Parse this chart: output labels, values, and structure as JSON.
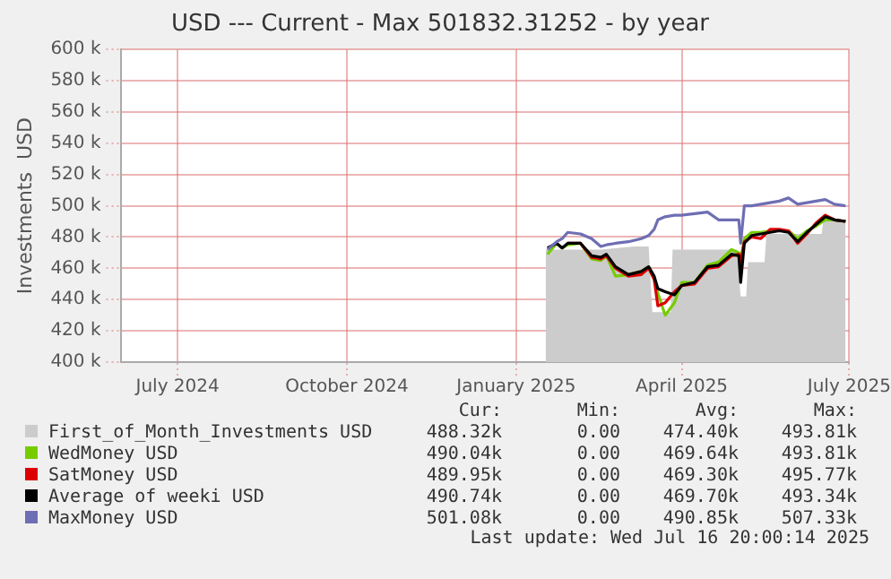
{
  "chart_data": {
    "type": "line",
    "title": "USD --- Current - Max 501832.31252 - by year",
    "ylabel": "Investments  USD",
    "xlim": [
      "2024-05-31",
      "2025-07-01"
    ],
    "xticks": [
      {
        "value": "2024-07-01",
        "label": "July 2024"
      },
      {
        "value": "2024-10-01",
        "label": "October 2024"
      },
      {
        "value": "2025-01-01",
        "label": "January 2025"
      },
      {
        "value": "2025-04-01",
        "label": "April 2025"
      },
      {
        "value": "2025-07-01",
        "label": "July 2025"
      }
    ],
    "ylim": [
      400000,
      600000
    ],
    "yticks": [
      {
        "value": 400000,
        "label": "400 k"
      },
      {
        "value": 420000,
        "label": "420 k"
      },
      {
        "value": 440000,
        "label": "440 k"
      },
      {
        "value": 460000,
        "label": "460 k"
      },
      {
        "value": 480000,
        "label": "480 k"
      },
      {
        "value": 500000,
        "label": "500 k"
      },
      {
        "value": 520000,
        "label": "520 k"
      },
      {
        "value": 540000,
        "label": "540 k"
      },
      {
        "value": 560000,
        "label": "560 k"
      },
      {
        "value": 580000,
        "label": "580 k"
      },
      {
        "value": 600000,
        "label": "600 k"
      }
    ],
    "x": [
      "2025-01-18",
      "2025-01-23",
      "2025-01-26",
      "2025-01-29",
      "2025-02-05",
      "2025-02-11",
      "2025-02-16",
      "2025-02-19",
      "2025-02-24",
      "2025-03-03",
      "2025-03-10",
      "2025-03-14",
      "2025-03-17",
      "2025-03-19",
      "2025-03-23",
      "2025-03-28",
      "2025-04-01",
      "2025-04-08",
      "2025-04-15",
      "2025-04-21",
      "2025-04-28",
      "2025-05-02",
      "2025-05-03",
      "2025-05-05",
      "2025-05-09",
      "2025-05-14",
      "2025-05-19",
      "2025-05-24",
      "2025-05-29",
      "2025-06-03",
      "2025-06-08",
      "2025-06-13",
      "2025-06-18",
      "2025-06-23",
      "2025-06-29"
    ],
    "series": [
      {
        "name": "First_of_Month_Investments USD",
        "type": "area",
        "color": "#cccccc",
        "x": [
          "2025-01-17",
          "2025-02-11",
          "2025-02-16",
          "2025-03-06",
          "2025-03-14",
          "2025-03-16",
          "2025-03-26",
          "2025-03-27",
          "2025-05-01",
          "2025-05-03",
          "2025-05-06",
          "2025-05-07",
          "2025-05-16",
          "2025-05-17",
          "2025-06-16",
          "2025-06-17",
          "2025-06-29"
        ],
        "values": [
          472000,
          472000,
          472000,
          474000,
          474000,
          432000,
          432000,
          472000,
          472000,
          442000,
          442000,
          464000,
          464000,
          482000,
          482000,
          491000,
          491000
        ]
      },
      {
        "name": "WedMoney USD",
        "color": "#77cc00",
        "values": [
          469000,
          476000,
          473000,
          475000,
          476000,
          466000,
          465000,
          468000,
          455000,
          456000,
          458000,
          461000,
          453000,
          444000,
          430000,
          438000,
          451000,
          451000,
          462000,
          464000,
          472000,
          470000,
          465000,
          479000,
          483000,
          483000,
          484000,
          484000,
          484000,
          479000,
          484000,
          487000,
          491000,
          491000,
          490000
        ]
      },
      {
        "name": "SatMoney USD",
        "color": "#dd0000",
        "values": [
          null,
          null,
          null,
          476000,
          476000,
          467000,
          466000,
          468000,
          460000,
          455000,
          456000,
          460000,
          453000,
          436000,
          438000,
          445000,
          449000,
          450000,
          460000,
          461000,
          468000,
          469000,
          464000,
          477000,
          480000,
          479000,
          485000,
          485000,
          484000,
          476000,
          482000,
          489000,
          494000,
          491000,
          490000
        ]
      },
      {
        "name": "Average of weeki USD",
        "color": "#000000",
        "values": [
          473000,
          476000,
          473000,
          476000,
          476000,
          468000,
          467000,
          469000,
          461000,
          456000,
          458000,
          461000,
          455000,
          447000,
          445000,
          443000,
          449000,
          451000,
          461000,
          462000,
          469000,
          468000,
          451000,
          476000,
          481000,
          482000,
          483000,
          484000,
          483000,
          477000,
          483000,
          488000,
          493000,
          491000,
          490000
        ]
      },
      {
        "name": "MaxMoney USD",
        "color": "#6e6eb4",
        "values": [
          472000,
          477000,
          479000,
          483000,
          482000,
          479000,
          474000,
          475000,
          476000,
          477000,
          479000,
          481000,
          485000,
          491000,
          493000,
          494000,
          494000,
          495000,
          496000,
          491000,
          491000,
          491000,
          476000,
          500000,
          500000,
          501000,
          502000,
          503000,
          505000,
          501000,
          502000,
          503000,
          504000,
          501000,
          500000
        ]
      }
    ],
    "grid": true,
    "legend": "bottom",
    "marker": "none",
    "line_style": "solid",
    "annotations": [
      "Cur:",
      "Min:",
      "Avg:",
      "Max:",
      "488.32k",
      "0.00",
      "474.40k",
      "493.81k",
      "490.04k",
      "0.00",
      "469.64k",
      "493.81k",
      "489.95k",
      "0.00",
      "469.30k",
      "495.77k",
      "490.74k",
      "0.00",
      "469.70k",
      "493.34k",
      "501.08k",
      "0.00",
      "490.85k",
      "507.33k",
      "Last update: Wed Jul 16 20:00:14 2025"
    ]
  }
}
